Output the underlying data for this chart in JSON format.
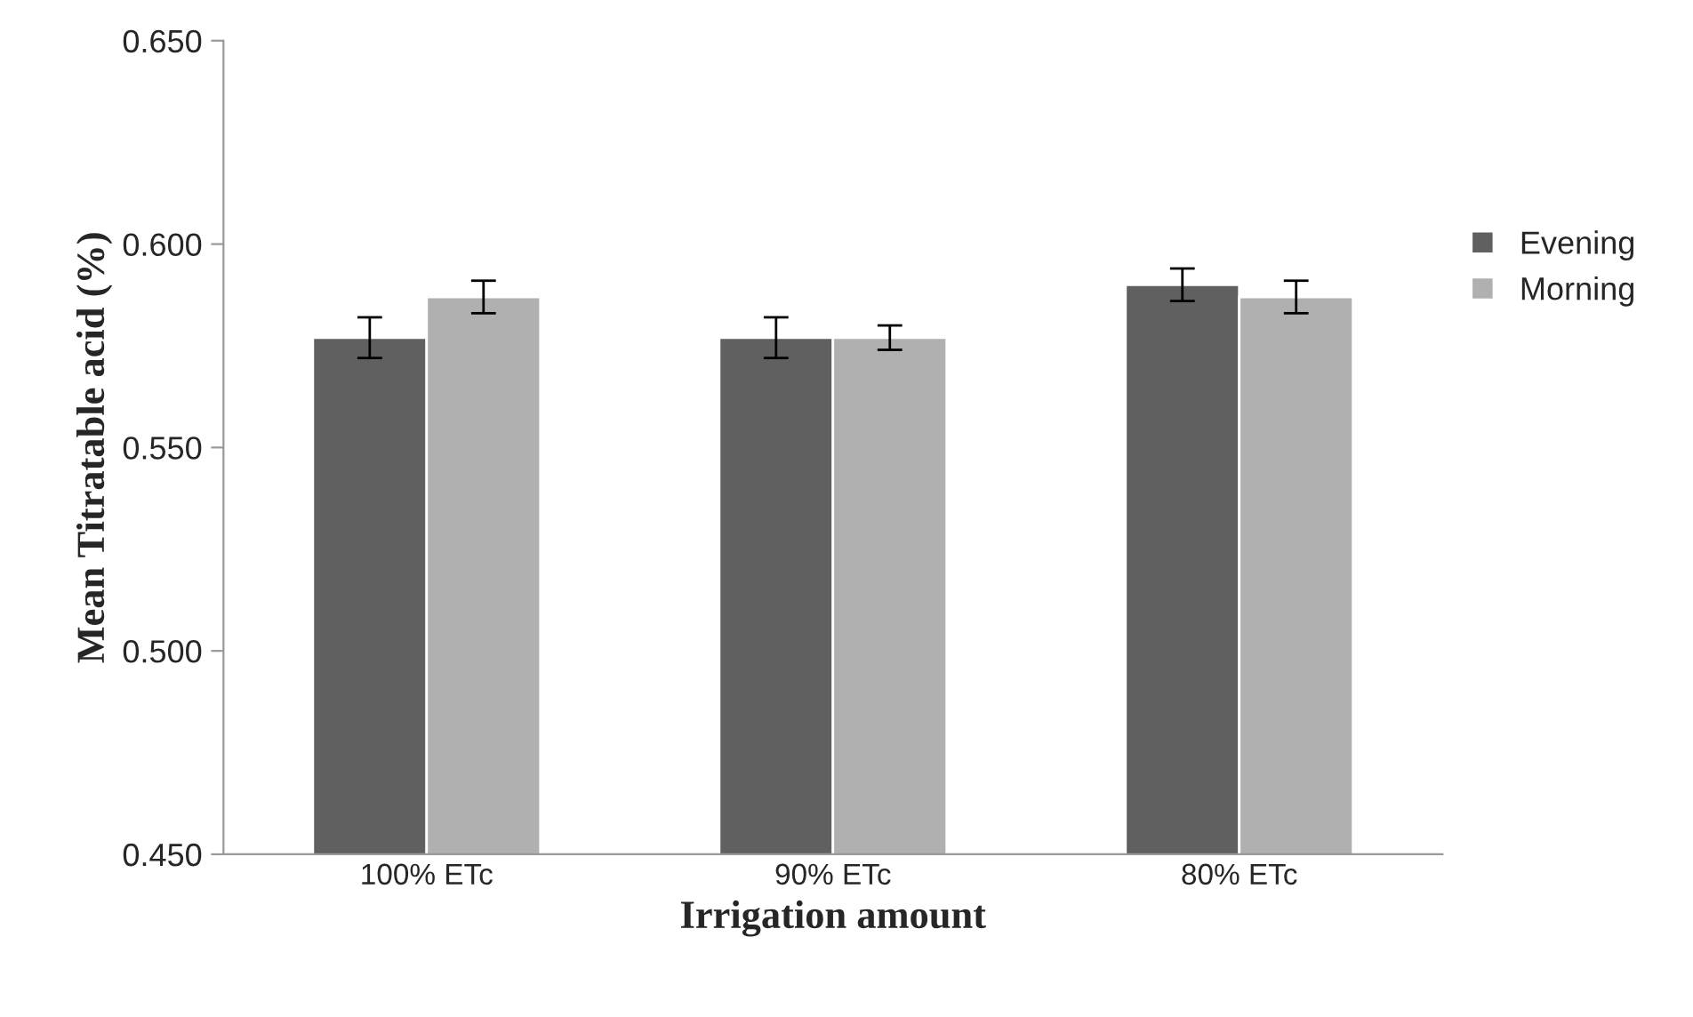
{
  "chart_data": {
    "type": "bar",
    "xlabel": "Irrigation amount",
    "ylabel": "Mean Titratable acid (%)",
    "categories": [
      "100% ETc",
      "90% ETc",
      "80% ETc"
    ],
    "series": [
      {
        "name": "Evening",
        "color": "#606060",
        "values": [
          0.577,
          0.577,
          0.59
        ],
        "errors": [
          0.005,
          0.005,
          0.004
        ]
      },
      {
        "name": "Morning",
        "color": "#b0b0b0",
        "values": [
          0.587,
          0.577,
          0.587
        ],
        "errors": [
          0.004,
          0.003,
          0.004
        ]
      }
    ],
    "ylim": [
      0.45,
      0.65
    ],
    "yticks": [
      {
        "value": 0.45,
        "label": "0.450"
      },
      {
        "value": 0.5,
        "label": "0.500"
      },
      {
        "value": 0.55,
        "label": "0.550"
      },
      {
        "value": 0.6,
        "label": "0.600"
      },
      {
        "value": 0.65,
        "label": "0.650"
      }
    ],
    "grid": false,
    "legend": "right"
  }
}
